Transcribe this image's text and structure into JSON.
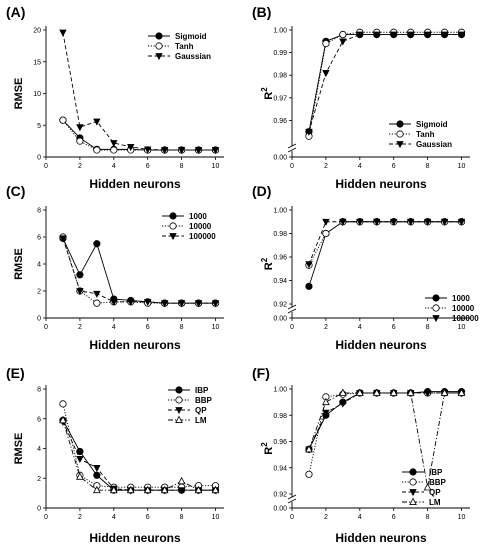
{
  "chart_data": [
    {
      "type": "line",
      "panel_label": "(A)",
      "xlabel": "Hidden neurons",
      "ylabel": "RMSE",
      "ylabel_super": "",
      "xlim": [
        0,
        10.5
      ],
      "ylim": [
        0,
        20
      ],
      "xticks": [
        "0",
        "2",
        "4",
        "6",
        "8",
        "10"
      ],
      "yticks": [
        "0",
        "5",
        "10",
        "15",
        "20"
      ],
      "axis_break": false,
      "legend_position": "top-right",
      "x": [
        1,
        2,
        3,
        4,
        5,
        6,
        7,
        8,
        9,
        10
      ],
      "series": [
        {
          "name": "Sigmoid",
          "marker": "circle-filled",
          "dash": "solid",
          "values": [
            5.8,
            3.0,
            1.2,
            1.2,
            1.2,
            1.1,
            1.1,
            1.1,
            1.1,
            1.1
          ]
        },
        {
          "name": "Tanh",
          "marker": "circle-open",
          "dash": "dotted",
          "values": [
            5.8,
            2.5,
            1.1,
            1.1,
            1.1,
            1.1,
            1.1,
            1.1,
            1.1,
            1.1
          ]
        },
        {
          "name": "Gaussian",
          "marker": "triangle-down",
          "dash": "dashed",
          "values": [
            19.6,
            4.7,
            5.6,
            2.2,
            1.6,
            1.2,
            1.1,
            1.1,
            1.1,
            1.1
          ]
        }
      ]
    },
    {
      "type": "line",
      "panel_label": "(B)",
      "xlabel": "Hidden neurons",
      "ylabel": "R",
      "ylabel_super": "2",
      "xlim": [
        0,
        10.5
      ],
      "ylim": [
        0.95,
        1.0
      ],
      "xticks": [
        "0",
        "2",
        "4",
        "6",
        "8",
        "10"
      ],
      "yticks": [
        "0.00",
        "0.96",
        "0.97",
        "0.98",
        "0.99",
        "1.00"
      ],
      "axis_break": true,
      "legend_position": "bottom-right",
      "x": [
        1,
        2,
        3,
        4,
        5,
        6,
        7,
        8,
        9,
        10
      ],
      "series": [
        {
          "name": "Sigmoid",
          "marker": "circle-filled",
          "dash": "solid",
          "values": [
            0.955,
            0.995,
            0.998,
            0.998,
            0.998,
            0.998,
            0.998,
            0.998,
            0.998,
            0.998
          ]
        },
        {
          "name": "Tanh",
          "marker": "circle-open",
          "dash": "dotted",
          "values": [
            0.953,
            0.994,
            0.998,
            0.999,
            0.999,
            0.999,
            0.999,
            0.999,
            0.999,
            0.999
          ]
        },
        {
          "name": "Gaussian",
          "marker": "triangle-down",
          "dash": "dashed",
          "values": [
            0.955,
            0.981,
            0.995,
            0.998,
            0.998,
            0.998,
            0.998,
            0.998,
            0.998,
            0.998
          ]
        }
      ]
    },
    {
      "type": "line",
      "panel_label": "(C)",
      "xlabel": "Hidden neurons",
      "ylabel": "RMSE",
      "ylabel_super": "",
      "xlim": [
        0,
        10.5
      ],
      "ylim": [
        0,
        8
      ],
      "xticks": [
        "0",
        "2",
        "4",
        "6",
        "8",
        "10"
      ],
      "yticks": [
        "0",
        "2",
        "4",
        "6",
        "8"
      ],
      "axis_break": false,
      "legend_position": "top-right",
      "x": [
        1,
        2,
        3,
        4,
        5,
        6,
        7,
        8,
        9,
        10
      ],
      "series": [
        {
          "name": "1000",
          "marker": "circle-filled",
          "dash": "solid",
          "values": [
            5.9,
            3.2,
            5.5,
            1.4,
            1.3,
            1.2,
            1.1,
            1.1,
            1.1,
            1.1
          ]
        },
        {
          "name": "10000",
          "marker": "circle-open",
          "dash": "dotted",
          "values": [
            6.0,
            2.0,
            1.1,
            1.2,
            1.2,
            1.1,
            1.1,
            1.1,
            1.1,
            1.1
          ]
        },
        {
          "name": "100000",
          "marker": "triangle-down",
          "dash": "dashed",
          "values": [
            5.9,
            2.0,
            1.8,
            1.2,
            1.2,
            1.2,
            1.1,
            1.1,
            1.1,
            1.1
          ]
        }
      ]
    },
    {
      "type": "line",
      "panel_label": "(D)",
      "xlabel": "Hidden neurons",
      "ylabel": "R",
      "ylabel_super": "2",
      "xlim": [
        0,
        10.5
      ],
      "ylim": [
        0.92,
        1.0
      ],
      "xticks": [
        "0",
        "2",
        "4",
        "6",
        "8",
        "10"
      ],
      "yticks": [
        "0.00",
        "0.92",
        "0.94",
        "0.96",
        "0.98",
        "1.00"
      ],
      "axis_break": true,
      "legend_position": "bottom-right",
      "x": [
        1,
        2,
        3,
        4,
        5,
        6,
        7,
        8,
        9,
        10
      ],
      "series": [
        {
          "name": "1000",
          "marker": "circle-filled",
          "dash": "solid",
          "values": [
            0.935,
            0.98,
            0.99,
            0.99,
            0.99,
            0.99,
            0.99,
            0.99,
            0.99,
            0.99
          ]
        },
        {
          "name": "10000",
          "marker": "circle-open",
          "dash": "dotted",
          "values": [
            0.953,
            0.98,
            0.99,
            0.99,
            0.99,
            0.99,
            0.99,
            0.99,
            0.99,
            0.99
          ]
        },
        {
          "name": "100000",
          "marker": "triangle-down",
          "dash": "dashed",
          "values": [
            0.954,
            0.99,
            0.99,
            0.99,
            0.99,
            0.99,
            0.99,
            0.99,
            0.99,
            0.99
          ]
        }
      ]
    },
    {
      "type": "line",
      "panel_label": "(E)",
      "xlabel": "Hidden neurons",
      "ylabel": "RMSE",
      "ylabel_super": "",
      "xlim": [
        0,
        10.5
      ],
      "ylim": [
        0,
        8
      ],
      "xticks": [
        "0",
        "2",
        "4",
        "6",
        "8",
        "10"
      ],
      "yticks": [
        "0",
        "2",
        "4",
        "6",
        "8"
      ],
      "axis_break": false,
      "legend_position": "top-right",
      "x": [
        1,
        2,
        3,
        4,
        5,
        6,
        7,
        8,
        9,
        10
      ],
      "series": [
        {
          "name": "IBP",
          "marker": "circle-filled",
          "dash": "solid",
          "values": [
            5.9,
            3.8,
            2.2,
            1.2,
            1.2,
            1.2,
            1.2,
            1.2,
            1.2,
            1.2
          ]
        },
        {
          "name": "BBP",
          "marker": "circle-open",
          "dash": "dotted",
          "values": [
            7.0,
            2.2,
            1.5,
            1.4,
            1.4,
            1.4,
            1.4,
            1.4,
            1.5,
            1.5
          ]
        },
        {
          "name": "QP",
          "marker": "triangle-down",
          "dash": "dashed",
          "values": [
            5.8,
            3.3,
            2.7,
            1.3,
            1.2,
            1.2,
            1.2,
            1.2,
            1.2,
            1.2
          ]
        },
        {
          "name": "LM",
          "marker": "triangle-up-open",
          "dash": "dashdot",
          "values": [
            5.9,
            2.1,
            1.2,
            1.2,
            1.2,
            1.2,
            1.2,
            1.8,
            1.2,
            1.2
          ]
        }
      ]
    },
    {
      "type": "line",
      "panel_label": "(F)",
      "xlabel": "Hidden neurons",
      "ylabel": "R",
      "ylabel_super": "2",
      "xlim": [
        0,
        10.5
      ],
      "ylim": [
        0.92,
        1.0
      ],
      "xticks": [
        "0",
        "2",
        "4",
        "6",
        "8",
        "10"
      ],
      "yticks": [
        "0.00",
        "0.92",
        "0.94",
        "0.96",
        "0.98",
        "1.00"
      ],
      "axis_break": true,
      "legend_position": "bottom-right",
      "x": [
        1,
        2,
        3,
        4,
        5,
        6,
        7,
        8,
        9,
        10
      ],
      "series": [
        {
          "name": "IBP",
          "marker": "circle-filled",
          "dash": "solid",
          "values": [
            0.954,
            0.98,
            0.99,
            0.997,
            0.997,
            0.997,
            0.997,
            0.998,
            0.998,
            0.998
          ]
        },
        {
          "name": "BBP",
          "marker": "circle-open",
          "dash": "dotted",
          "values": [
            0.935,
            0.994,
            0.996,
            0.997,
            0.997,
            0.997,
            0.997,
            0.997,
            0.997,
            0.997
          ]
        },
        {
          "name": "QP",
          "marker": "triangle-down",
          "dash": "dashed",
          "values": [
            0.954,
            0.982,
            0.989,
            0.997,
            0.997,
            0.997,
            0.997,
            0.997,
            0.997,
            0.997
          ]
        },
        {
          "name": "LM",
          "marker": "triangle-up-open",
          "dash": "dashdot",
          "values": [
            0.954,
            0.99,
            0.997,
            0.997,
            0.997,
            0.997,
            0.997,
            0.925,
            0.997,
            0.997
          ]
        }
      ]
    }
  ]
}
